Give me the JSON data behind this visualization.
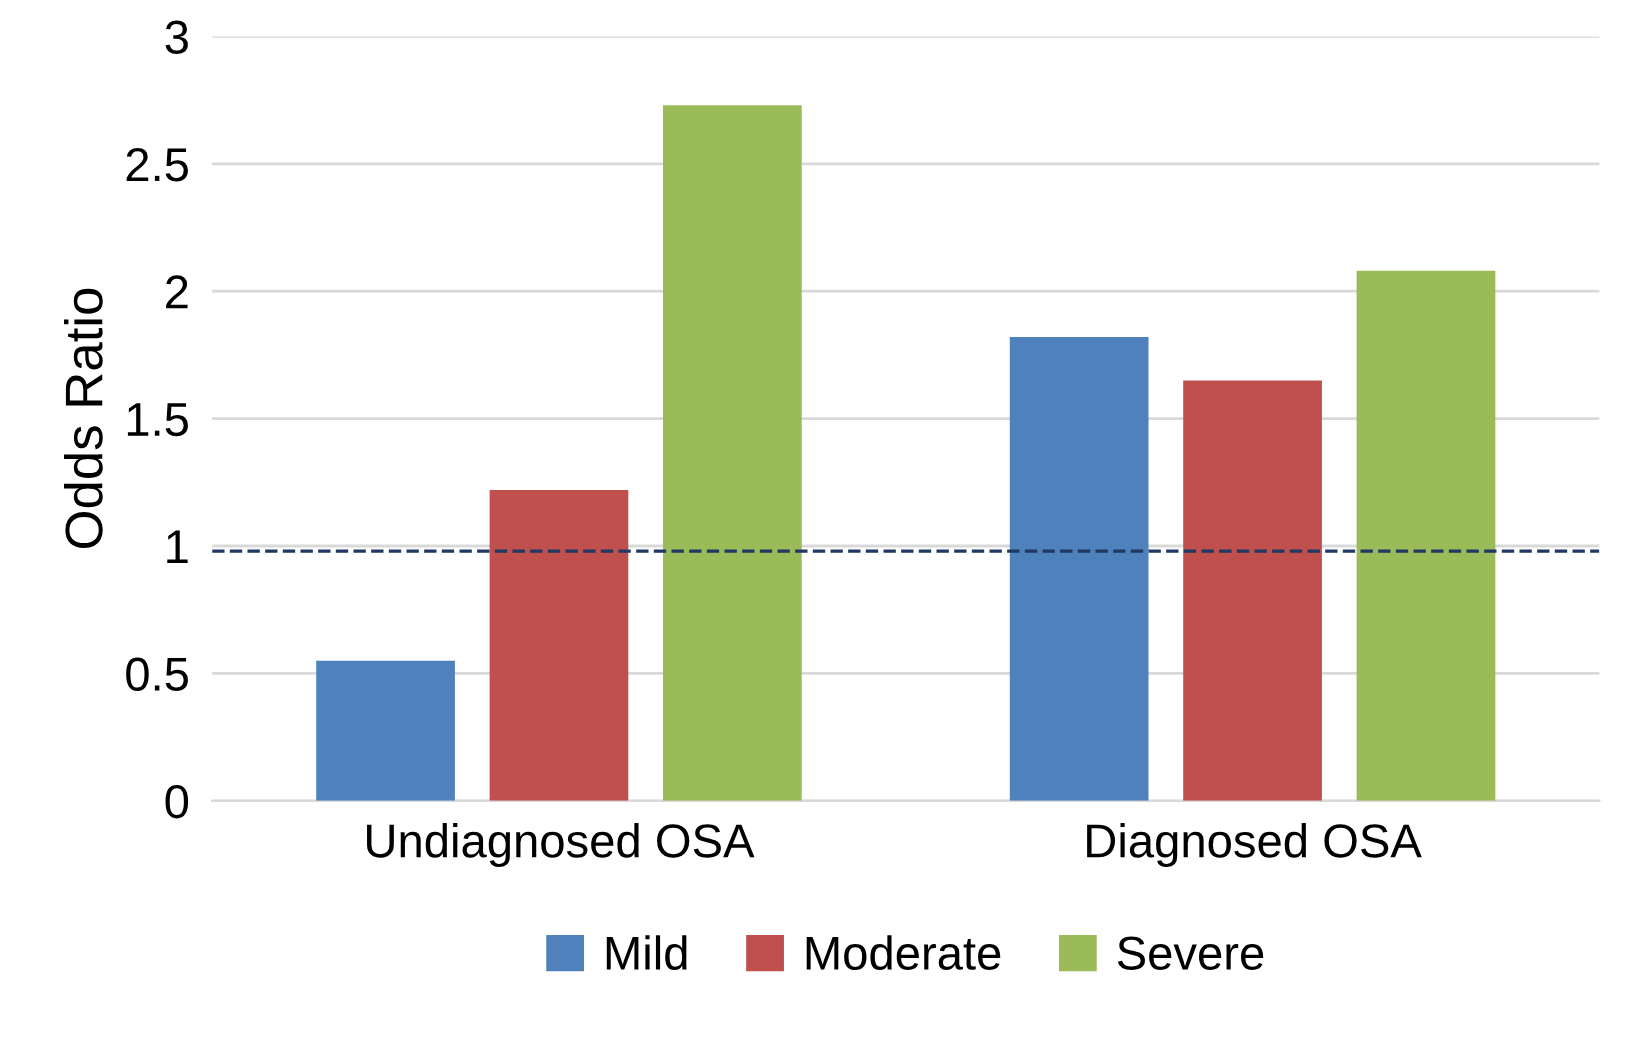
{
  "chart_data": {
    "type": "bar",
    "ylabel": "Odds Ratio",
    "categories": [
      "Undiagnosed OSA",
      "Diagnosed OSA"
    ],
    "series": [
      {
        "name": "Mild",
        "color": "#4f81bd",
        "values": [
          0.55,
          1.82
        ]
      },
      {
        "name": "Moderate",
        "color": "#c0504d",
        "values": [
          1.22,
          1.65
        ]
      },
      {
        "name": "Severe",
        "color": "#9bbb59",
        "values": [
          2.73,
          2.08
        ]
      }
    ],
    "ylim": [
      0,
      3
    ],
    "yticks": [
      0,
      0.5,
      1,
      1.5,
      2,
      2.5,
      3
    ],
    "ref_lines": [
      {
        "axis": "y",
        "value": 0.98,
        "color": "#1f3864",
        "line_style": "dashed"
      }
    ],
    "grid": "y",
    "legend": "bottom"
  }
}
